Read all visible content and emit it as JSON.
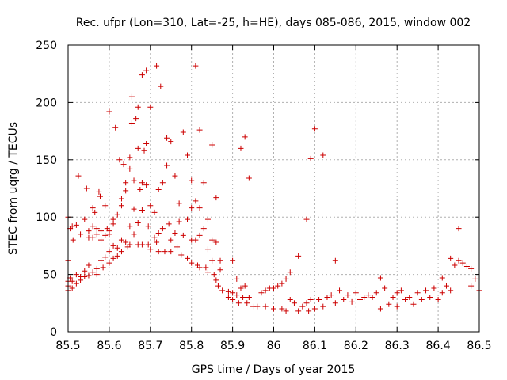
{
  "chart_data": {
    "type": "scatter",
    "title": "Rec. ufpr (Lon=310, Lat=-25, h=HE), days 085-086, 2015, window 002",
    "xlabel": "GPS time / Days of year 2015",
    "ylabel": "STEC from uqrg / TECUs",
    "xlim": [
      85.5,
      86.5
    ],
    "ylim": [
      0,
      250
    ],
    "xticks": [
      "85.5",
      "85.6",
      "85.7",
      "85.8",
      "85.9",
      "86",
      "86.1",
      "86.2",
      "86.3",
      "86.4",
      "86.5"
    ],
    "yticks": [
      "0",
      "50",
      "100",
      "150",
      "200",
      "250"
    ],
    "grid": true,
    "marker": "+",
    "color": "#cc0000",
    "series": [
      {
        "name": "STEC",
        "points": [
          [
            85.5,
            62
          ],
          [
            85.5,
            44
          ],
          [
            85.5,
            40
          ],
          [
            85.5,
            36
          ],
          [
            85.5,
            100
          ],
          [
            85.505,
            90
          ],
          [
            85.505,
            47
          ],
          [
            85.51,
            92
          ],
          [
            85.51,
            44
          ],
          [
            85.51,
            38
          ],
          [
            85.512,
            80
          ],
          [
            85.52,
            93
          ],
          [
            85.52,
            50
          ],
          [
            85.52,
            42
          ],
          [
            85.525,
            136
          ],
          [
            85.53,
            85
          ],
          [
            85.53,
            48
          ],
          [
            85.53,
            45
          ],
          [
            85.54,
            98
          ],
          [
            85.54,
            53
          ],
          [
            85.54,
            48
          ],
          [
            85.545,
            125
          ],
          [
            85.55,
            88
          ],
          [
            85.55,
            82
          ],
          [
            85.55,
            58
          ],
          [
            85.55,
            49
          ],
          [
            85.56,
            108
          ],
          [
            85.56,
            92
          ],
          [
            85.56,
            82
          ],
          [
            85.56,
            52
          ],
          [
            85.565,
            104
          ],
          [
            85.57,
            90
          ],
          [
            85.57,
            85
          ],
          [
            85.57,
            55
          ],
          [
            85.57,
            50
          ],
          [
            85.575,
            122
          ],
          [
            85.578,
            118
          ],
          [
            85.58,
            88
          ],
          [
            85.58,
            80
          ],
          [
            85.58,
            62
          ],
          [
            85.585,
            56
          ],
          [
            85.59,
            110
          ],
          [
            85.59,
            84
          ],
          [
            85.59,
            65
          ],
          [
            85.595,
            90
          ],
          [
            85.6,
            192
          ],
          [
            85.6,
            88
          ],
          [
            85.6,
            85
          ],
          [
            85.6,
            70
          ],
          [
            85.6,
            60
          ],
          [
            85.61,
            98
          ],
          [
            85.61,
            94
          ],
          [
            85.61,
            75
          ],
          [
            85.61,
            64
          ],
          [
            85.615,
            178
          ],
          [
            85.62,
            102
          ],
          [
            85.62,
            73
          ],
          [
            85.62,
            66
          ],
          [
            85.625,
            150
          ],
          [
            85.63,
            116
          ],
          [
            85.63,
            110
          ],
          [
            85.63,
            80
          ],
          [
            85.63,
            70
          ],
          [
            85.635,
            146
          ],
          [
            85.64,
            130
          ],
          [
            85.64,
            123
          ],
          [
            85.64,
            78
          ],
          [
            85.645,
            74
          ],
          [
            85.65,
            152
          ],
          [
            85.65,
            142
          ],
          [
            85.65,
            92
          ],
          [
            85.65,
            76
          ],
          [
            85.655,
            205
          ],
          [
            85.655,
            182
          ],
          [
            85.66,
            132
          ],
          [
            85.66,
            107
          ],
          [
            85.66,
            85
          ],
          [
            85.665,
            186
          ],
          [
            85.67,
            196
          ],
          [
            85.67,
            160
          ],
          [
            85.67,
            95
          ],
          [
            85.67,
            76
          ],
          [
            85.675,
            124
          ],
          [
            85.68,
            224
          ],
          [
            85.68,
            130
          ],
          [
            85.68,
            106
          ],
          [
            85.68,
            76
          ],
          [
            85.685,
            158
          ],
          [
            85.69,
            228
          ],
          [
            85.69,
            164
          ],
          [
            85.69,
            128
          ],
          [
            85.695,
            92
          ],
          [
            85.695,
            76
          ],
          [
            85.7,
            196
          ],
          [
            85.7,
            110
          ],
          [
            85.7,
            72
          ],
          [
            85.71,
            104
          ],
          [
            85.71,
            82
          ],
          [
            85.715,
            232
          ],
          [
            85.715,
            78
          ],
          [
            85.72,
            124
          ],
          [
            85.72,
            86
          ],
          [
            85.72,
            70
          ],
          [
            85.725,
            214
          ],
          [
            85.73,
            130
          ],
          [
            85.73,
            90
          ],
          [
            85.735,
            70
          ],
          [
            85.74,
            169
          ],
          [
            85.74,
            145
          ],
          [
            85.745,
            94
          ],
          [
            85.75,
            166
          ],
          [
            85.75,
            80
          ],
          [
            85.75,
            70
          ],
          [
            85.76,
            136
          ],
          [
            85.76,
            86
          ],
          [
            85.765,
            74
          ],
          [
            85.77,
            112
          ],
          [
            85.77,
            96
          ],
          [
            85.775,
            67
          ],
          [
            85.78,
            174
          ],
          [
            85.78,
            84
          ],
          [
            85.79,
            154
          ],
          [
            85.79,
            98
          ],
          [
            85.79,
            64
          ],
          [
            85.8,
            132
          ],
          [
            85.8,
            108
          ],
          [
            85.8,
            80
          ],
          [
            85.8,
            60
          ],
          [
            85.81,
            232
          ],
          [
            85.81,
            114
          ],
          [
            85.81,
            80
          ],
          [
            85.815,
            58
          ],
          [
            85.82,
            176
          ],
          [
            85.82,
            108
          ],
          [
            85.82,
            84
          ],
          [
            85.82,
            56
          ],
          [
            85.83,
            130
          ],
          [
            85.83,
            90
          ],
          [
            85.835,
            56
          ],
          [
            85.84,
            98
          ],
          [
            85.84,
            72
          ],
          [
            85.84,
            52
          ],
          [
            85.85,
            163
          ],
          [
            85.85,
            80
          ],
          [
            85.85,
            62
          ],
          [
            85.855,
            50
          ],
          [
            85.86,
            117
          ],
          [
            85.86,
            78
          ],
          [
            85.86,
            45
          ],
          [
            85.865,
            40
          ],
          [
            85.87,
            62
          ],
          [
            85.87,
            54
          ],
          [
            85.875,
            36
          ],
          [
            85.89,
            35
          ],
          [
            85.89,
            30
          ],
          [
            85.9,
            62
          ],
          [
            85.9,
            34
          ],
          [
            85.9,
            28
          ],
          [
            85.91,
            46
          ],
          [
            85.91,
            32
          ],
          [
            85.915,
            25
          ],
          [
            85.92,
            160
          ],
          [
            85.92,
            38
          ],
          [
            85.925,
            30
          ],
          [
            85.93,
            170
          ],
          [
            85.93,
            40
          ],
          [
            85.935,
            25
          ],
          [
            85.94,
            134
          ],
          [
            85.94,
            30
          ],
          [
            85.95,
            22
          ],
          [
            85.96,
            22
          ],
          [
            85.97,
            34
          ],
          [
            85.98,
            36
          ],
          [
            85.98,
            22
          ],
          [
            85.99,
            38
          ],
          [
            86.0,
            38
          ],
          [
            86.0,
            20
          ],
          [
            86.01,
            40
          ],
          [
            86.02,
            42
          ],
          [
            86.02,
            20
          ],
          [
            86.03,
            46
          ],
          [
            86.03,
            18
          ],
          [
            86.04,
            52
          ],
          [
            86.04,
            28
          ],
          [
            86.05,
            25
          ],
          [
            86.06,
            66
          ],
          [
            86.06,
            18
          ],
          [
            86.07,
            22
          ],
          [
            86.08,
            98
          ],
          [
            86.08,
            25
          ],
          [
            86.085,
            18
          ],
          [
            86.09,
            151
          ],
          [
            86.09,
            28
          ],
          [
            86.1,
            177
          ],
          [
            86.1,
            20
          ],
          [
            86.11,
            28
          ],
          [
            86.12,
            154
          ],
          [
            86.12,
            22
          ],
          [
            86.13,
            30
          ],
          [
            86.14,
            32
          ],
          [
            86.15,
            62
          ],
          [
            86.15,
            25
          ],
          [
            86.16,
            36
          ],
          [
            86.17,
            28
          ],
          [
            86.18,
            32
          ],
          [
            86.19,
            26
          ],
          [
            86.2,
            34
          ],
          [
            86.21,
            28
          ],
          [
            86.22,
            30
          ],
          [
            86.23,
            32
          ],
          [
            86.24,
            30
          ],
          [
            86.25,
            34
          ],
          [
            86.26,
            47
          ],
          [
            86.26,
            20
          ],
          [
            86.27,
            38
          ],
          [
            86.28,
            24
          ],
          [
            86.29,
            30
          ],
          [
            86.3,
            34
          ],
          [
            86.3,
            22
          ],
          [
            86.31,
            36
          ],
          [
            86.32,
            28
          ],
          [
            86.33,
            30
          ],
          [
            86.34,
            24
          ],
          [
            86.35,
            34
          ],
          [
            86.36,
            28
          ],
          [
            86.37,
            36
          ],
          [
            86.38,
            30
          ],
          [
            86.39,
            38
          ],
          [
            86.4,
            28
          ],
          [
            86.41,
            47
          ],
          [
            86.41,
            34
          ],
          [
            86.42,
            40
          ],
          [
            86.43,
            64
          ],
          [
            86.43,
            36
          ],
          [
            86.44,
            58
          ],
          [
            86.45,
            90
          ],
          [
            86.45,
            62
          ],
          [
            86.46,
            60
          ],
          [
            86.47,
            57
          ],
          [
            86.48,
            55
          ],
          [
            86.48,
            40
          ],
          [
            86.49,
            46
          ],
          [
            86.5,
            36
          ]
        ]
      }
    ]
  }
}
